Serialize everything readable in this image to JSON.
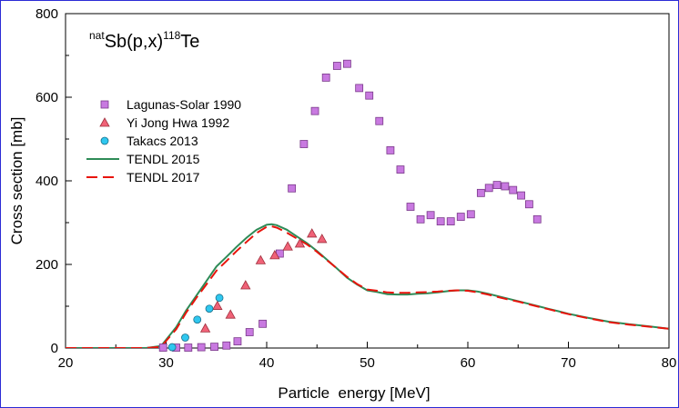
{
  "chart_data": {
    "type": "scatter",
    "title": {
      "prefix": "nat",
      "main1": "Sb(p,x)",
      "mass": "118",
      "main2": "Te"
    },
    "xlabel": "Particle  energy [MeV]",
    "ylabel": "Cross section [mb]",
    "xlim": [
      20,
      80
    ],
    "ylim": [
      0,
      800
    ],
    "xticks": [
      "20",
      "30",
      "40",
      "50",
      "60",
      "70",
      "80"
    ],
    "yticks": [
      "0",
      "200",
      "400",
      "600",
      "800"
    ],
    "grid": false,
    "legend_position": "upper-left",
    "series": [
      {
        "name": "Lagunas-Solar 1990",
        "kind": "marker-square",
        "color": "#c879e0",
        "x": [
          29.7,
          31.0,
          32.2,
          33.5,
          34.8,
          36.0,
          37.1,
          38.3,
          39.6,
          41.3,
          42.5,
          43.7,
          44.8,
          45.9,
          47.0,
          48.0,
          49.2,
          50.2,
          51.2,
          52.3,
          53.3,
          54.3,
          55.3,
          56.3,
          57.3,
          58.3,
          59.3,
          60.3,
          61.3,
          62.1,
          62.9,
          63.7,
          64.5,
          65.3,
          66.1,
          66.9
        ],
        "y": [
          1,
          1,
          1,
          2,
          3,
          6,
          16,
          38,
          58,
          226,
          382,
          488,
          567,
          647,
          675,
          680,
          622,
          604,
          543,
          473,
          427,
          338,
          308,
          318,
          303,
          303,
          314,
          320,
          371,
          383,
          390,
          387,
          378,
          365,
          344,
          308
        ]
      },
      {
        "name": "Yi Jong Hwa 1992",
        "kind": "marker-triangle",
        "color": "#f06277",
        "x": [
          33.9,
          35.1,
          36.4,
          37.9,
          39.4,
          40.8,
          42.1,
          43.3,
          44.5,
          45.5
        ],
        "y": [
          47,
          101,
          80,
          150,
          210,
          222,
          243,
          250,
          274,
          261
        ]
      },
      {
        "name": "Takacs 2013",
        "kind": "marker-circle",
        "color": "#2fc7ef",
        "x": [
          30.6,
          31.9,
          33.1,
          34.3,
          35.3
        ],
        "y": [
          2,
          25,
          68,
          94,
          120
        ]
      },
      {
        "name": "TENDL 2015",
        "kind": "line-solid",
        "color": "#2e8b57",
        "x": [
          20,
          25,
          28,
          29.5,
          31,
          32,
          33,
          34,
          35,
          36,
          37,
          38,
          39,
          40,
          40.5,
          41,
          42,
          43,
          44,
          45,
          46,
          47,
          48,
          49,
          50,
          51,
          52,
          53,
          54,
          55,
          56,
          57,
          58,
          59,
          60,
          61,
          62,
          63,
          64,
          65,
          66,
          67,
          68,
          69,
          70,
          72,
          74,
          76,
          78,
          80
        ],
        "y": [
          0,
          0,
          0,
          5,
          50,
          90,
          125,
          160,
          195,
          218,
          242,
          264,
          283,
          295,
          296,
          294,
          283,
          267,
          251,
          232,
          211,
          190,
          168,
          152,
          138,
          134,
          129,
          128,
          128,
          130,
          131,
          133,
          136,
          138,
          138,
          135,
          130,
          124,
          118,
          112,
          106,
          100,
          94,
          88,
          82,
          72,
          63,
          57,
          52,
          46
        ]
      },
      {
        "name": "TENDL 2017",
        "kind": "line-dashed",
        "color": "#e8140c",
        "x": [
          20,
          25,
          28,
          29.5,
          31,
          32,
          33,
          34,
          35,
          36,
          37,
          38,
          39,
          40,
          40.5,
          41,
          42,
          43,
          44,
          45,
          46,
          47,
          48,
          49,
          50,
          51,
          52,
          53,
          54,
          55,
          56,
          57,
          58,
          59,
          60,
          61,
          62,
          63,
          64,
          65,
          66,
          67,
          68,
          69,
          70,
          72,
          74,
          76,
          78,
          80
        ],
        "y": [
          0,
          0,
          0,
          3,
          45,
          85,
          120,
          152,
          185,
          208,
          232,
          254,
          275,
          290,
          291,
          288,
          276,
          262,
          248,
          230,
          210,
          190,
          170,
          153,
          140,
          137,
          133,
          132,
          132,
          133,
          134,
          135,
          137,
          138,
          137,
          133,
          128,
          122,
          116,
          111,
          105,
          99,
          93,
          87,
          81,
          71,
          62,
          56,
          51,
          46
        ]
      }
    ]
  }
}
